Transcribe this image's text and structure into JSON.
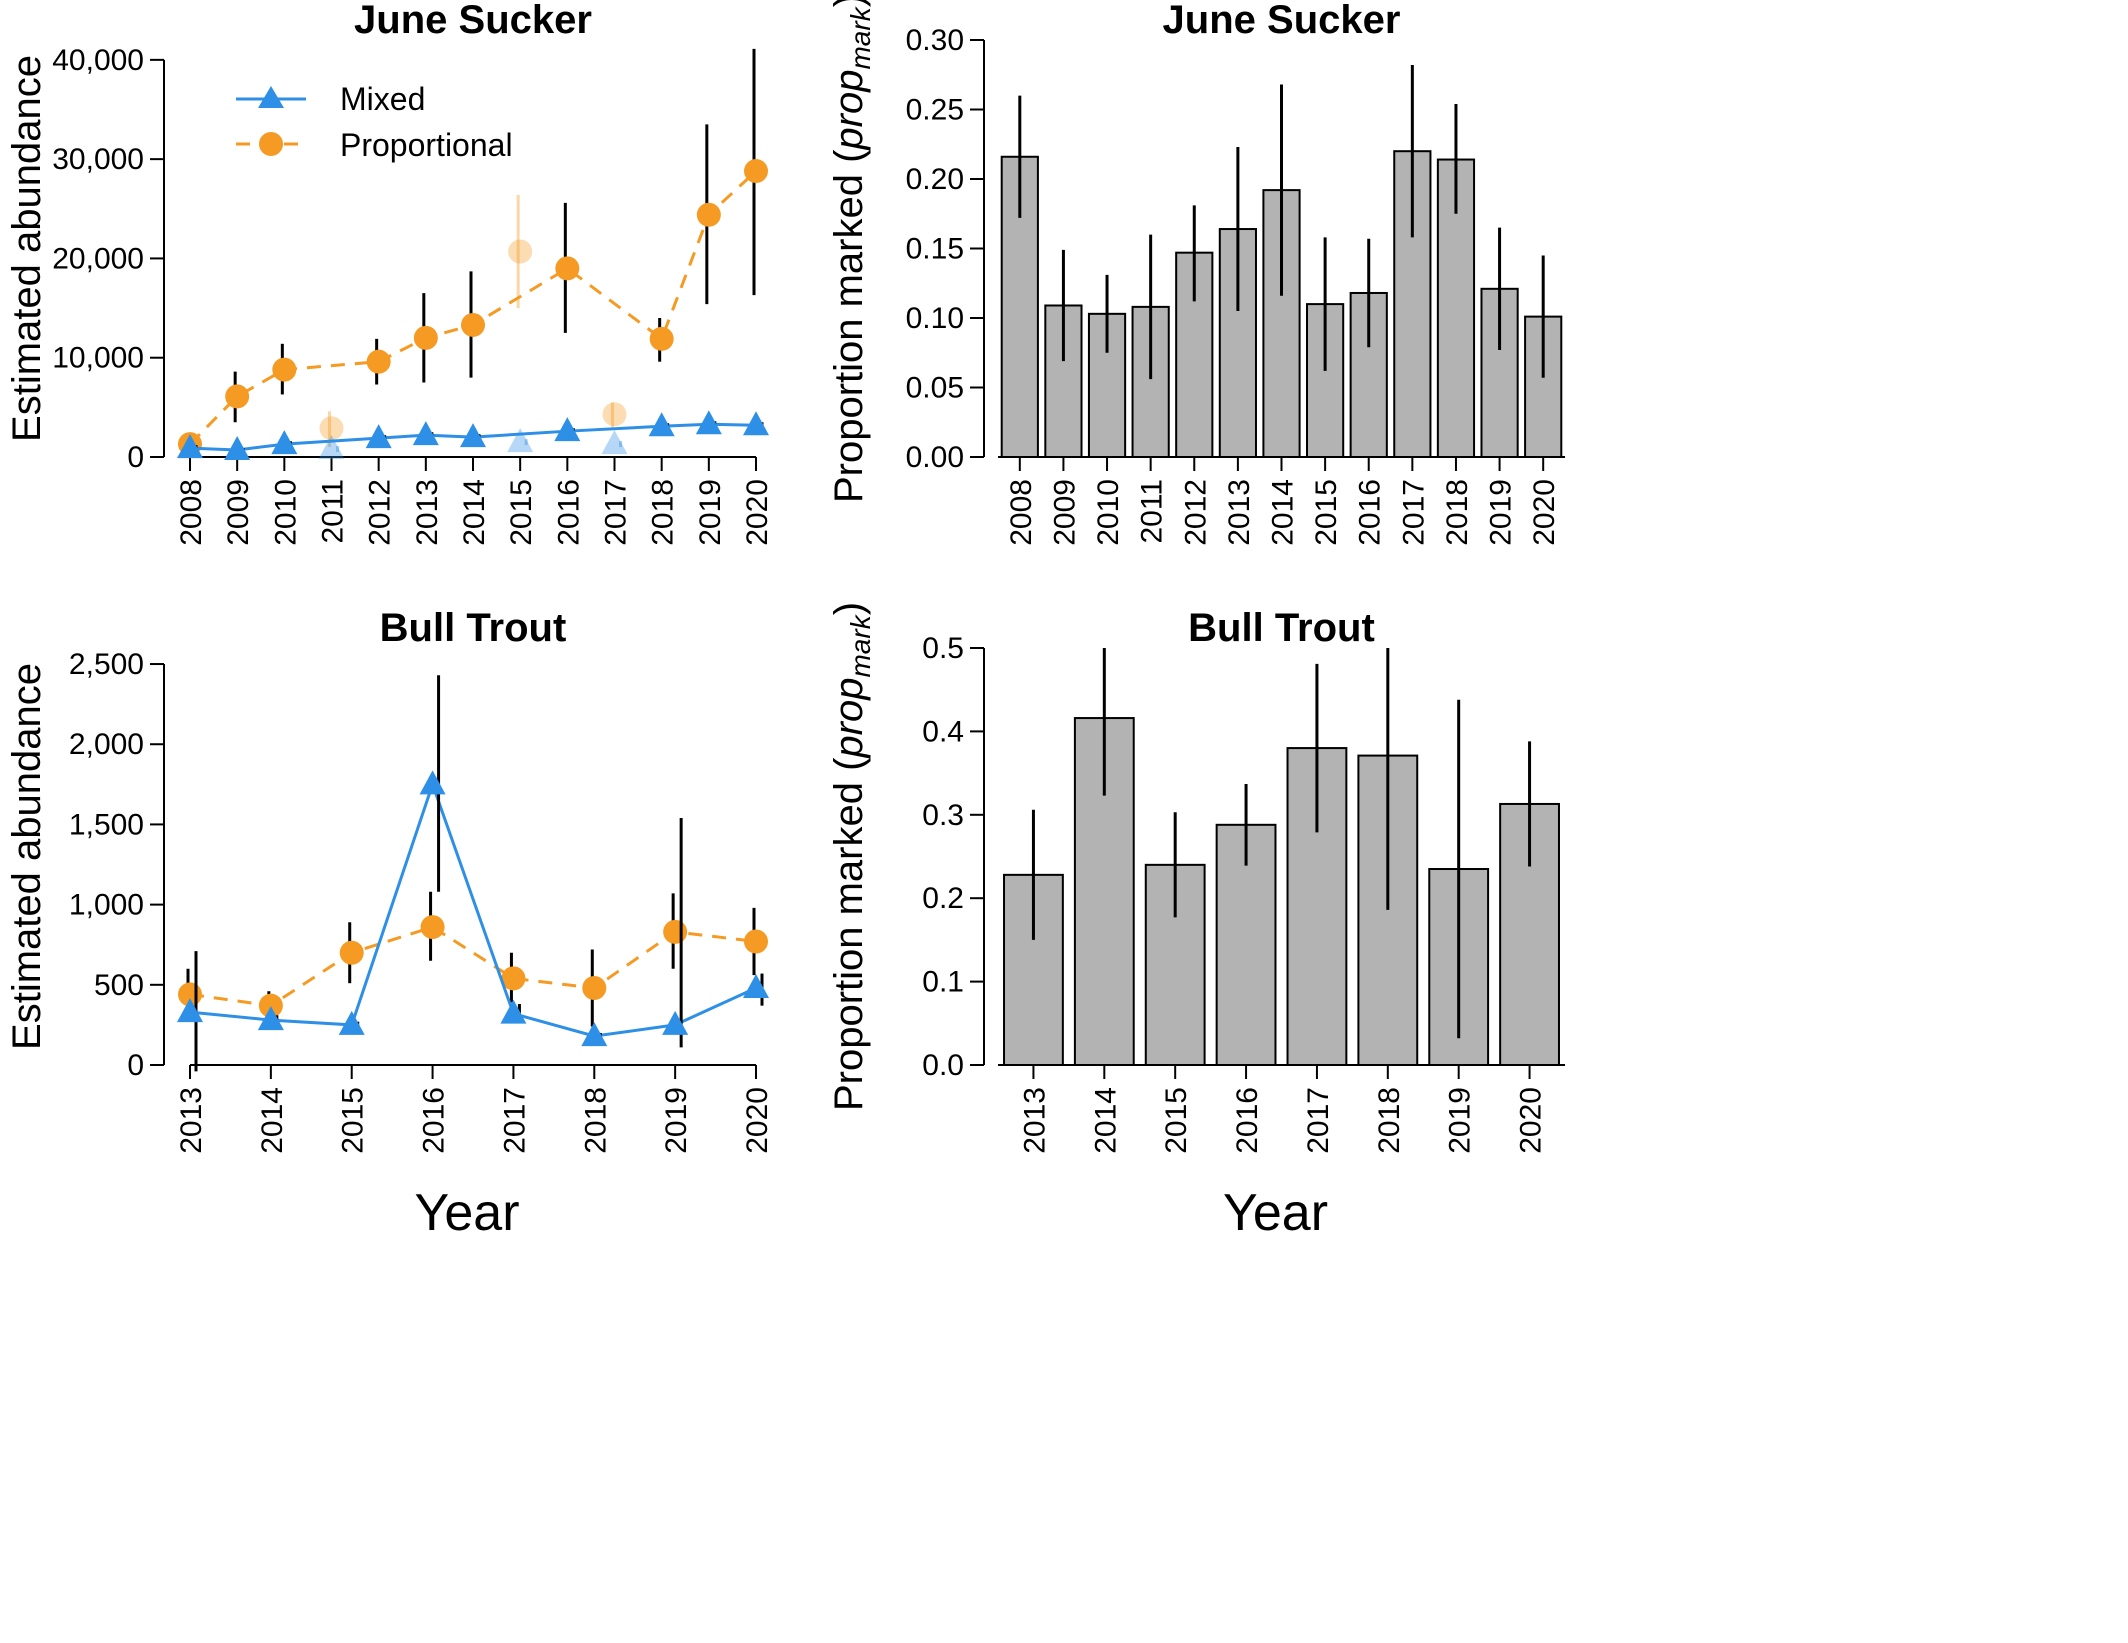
{
  "figure": {
    "x_title": "Year",
    "legend": {
      "placement": "top-left",
      "mixed_label": "Mixed",
      "proportional_label": "Proportional"
    }
  },
  "colors": {
    "mixed": "#2e8fe6",
    "proportional": "#f59a23",
    "bar_fill": "#b3b3b3",
    "error_bar": "#000000"
  },
  "chart_data": [
    {
      "type": "line",
      "title": "June Sucker",
      "xlabel": "",
      "ylabel": "Estimated abundance",
      "ylim": [
        0,
        42000
      ],
      "yticks": [
        0,
        10000,
        20000,
        30000,
        40000
      ],
      "ytick_labels": [
        "0",
        "10,000",
        "20,000",
        "30,000",
        "40,000"
      ],
      "x": [
        "2008",
        "2009",
        "2010",
        "2011",
        "2012",
        "2013",
        "2014",
        "2015",
        "2016",
        "2017",
        "2018",
        "2019",
        "2020"
      ],
      "series": [
        {
          "name": "Mixed",
          "marker": "triangle",
          "line": "solid",
          "color": "#2e8fe6",
          "values": [
            900,
            700,
            1300,
            800,
            1900,
            2200,
            2000,
            1500,
            2600,
            1300,
            3100,
            3300,
            3200
          ],
          "lower": [
            600,
            500,
            1000,
            500,
            1600,
            1900,
            1700,
            1200,
            2300,
            1000,
            2800,
            3000,
            2900
          ],
          "upper": [
            1200,
            900,
            1600,
            1100,
            2200,
            2500,
            2300,
            1800,
            2900,
            1600,
            3400,
            3600,
            3500
          ],
          "faded": [
            false,
            false,
            false,
            true,
            false,
            false,
            false,
            true,
            false,
            true,
            false,
            false,
            false
          ]
        },
        {
          "name": "Proportional",
          "marker": "circle",
          "line": "dashed",
          "color": "#f59a23",
          "values": [
            1300,
            6100,
            8800,
            2900,
            9600,
            12000,
            13300,
            20700,
            19000,
            4300,
            11900,
            24400,
            28800
          ],
          "lower": [
            900,
            3500,
            6300,
            1000,
            7300,
            7500,
            8000,
            15000,
            12500,
            3000,
            9600,
            15400,
            16300
          ],
          "upper": [
            1700,
            8600,
            11400,
            4600,
            11900,
            16500,
            18700,
            26400,
            25600,
            5500,
            14000,
            33500,
            41100
          ],
          "faded": [
            false,
            false,
            false,
            true,
            false,
            false,
            false,
            true,
            false,
            true,
            false,
            false,
            false
          ]
        }
      ]
    },
    {
      "type": "bar",
      "title": "June Sucker",
      "xlabel": "",
      "ylabel": "Proportion marked",
      "ylabel_math": "prop",
      "ylabel_sub": "mark",
      "ylim": [
        0,
        0.3
      ],
      "yticks": [
        0,
        0.05,
        0.1,
        0.15,
        0.2,
        0.25,
        0.3
      ],
      "ytick_labels": [
        "0.00",
        "0.05",
        "0.10",
        "0.15",
        "0.20",
        "0.25",
        "0.30"
      ],
      "categories": [
        "2008",
        "2009",
        "2010",
        "2011",
        "2012",
        "2013",
        "2014",
        "2015",
        "2016",
        "2017",
        "2018",
        "2019",
        "2020"
      ],
      "values": [
        0.216,
        0.109,
        0.103,
        0.108,
        0.147,
        0.164,
        0.192,
        0.11,
        0.118,
        0.22,
        0.214,
        0.121,
        0.101
      ],
      "lower": [
        0.172,
        0.069,
        0.075,
        0.056,
        0.112,
        0.105,
        0.116,
        0.062,
        0.079,
        0.158,
        0.175,
        0.077,
        0.057
      ],
      "upper": [
        0.26,
        0.149,
        0.131,
        0.16,
        0.181,
        0.223,
        0.268,
        0.158,
        0.157,
        0.282,
        0.254,
        0.165,
        0.145
      ]
    },
    {
      "type": "line",
      "title": "Bull Trout",
      "xlabel": "Year",
      "ylabel": "Estimated abundance",
      "ylim": [
        0,
        2600
      ],
      "yticks": [
        0,
        500,
        1000,
        1500,
        2000,
        2500
      ],
      "ytick_labels": [
        "0",
        "500",
        "1,000",
        "1,500",
        "2,000",
        "2,500"
      ],
      "x": [
        "2013",
        "2014",
        "2015",
        "2016",
        "2017",
        "2018",
        "2019",
        "2020"
      ],
      "series": [
        {
          "name": "Mixed",
          "marker": "triangle",
          "line": "solid",
          "color": "#2e8fe6",
          "values": [
            330,
            280,
            250,
            1750,
            320,
            180,
            250,
            480
          ],
          "lower": [
            -40,
            250,
            230,
            1080,
            270,
            160,
            110,
            370
          ],
          "upper": [
            710,
            310,
            270,
            2430,
            380,
            200,
            1540,
            570
          ],
          "faded": [
            false,
            false,
            false,
            false,
            false,
            false,
            false,
            false
          ]
        },
        {
          "name": "Proportional",
          "marker": "circle",
          "line": "dashed",
          "color": "#f59a23",
          "values": [
            440,
            370,
            700,
            860,
            540,
            480,
            830,
            770
          ],
          "lower": [
            280,
            290,
            510,
            650,
            390,
            240,
            600,
            560
          ],
          "upper": [
            600,
            460,
            890,
            1080,
            700,
            720,
            1070,
            980
          ],
          "faded": [
            false,
            false,
            false,
            false,
            false,
            false,
            false,
            false
          ]
        }
      ]
    },
    {
      "type": "bar",
      "title": "Bull Trout",
      "xlabel": "Year",
      "ylabel": "Proportion marked",
      "ylabel_math": "prop",
      "ylabel_sub": "mark",
      "ylim": [
        0,
        0.5
      ],
      "yticks": [
        0,
        0.1,
        0.2,
        0.3,
        0.4,
        0.5
      ],
      "ytick_labels": [
        "0.0",
        "0.1",
        "0.2",
        "0.3",
        "0.4",
        "0.5"
      ],
      "categories": [
        "2013",
        "2014",
        "2015",
        "2016",
        "2017",
        "2018",
        "2019",
        "2020"
      ],
      "values": [
        0.228,
        0.416,
        0.24,
        0.288,
        0.38,
        0.371,
        0.235,
        0.313
      ],
      "lower": [
        0.15,
        0.323,
        0.177,
        0.239,
        0.279,
        0.186,
        0.032,
        0.238
      ],
      "upper": [
        0.306,
        0.505,
        0.303,
        0.337,
        0.481,
        0.556,
        0.438,
        0.388
      ]
    }
  ]
}
